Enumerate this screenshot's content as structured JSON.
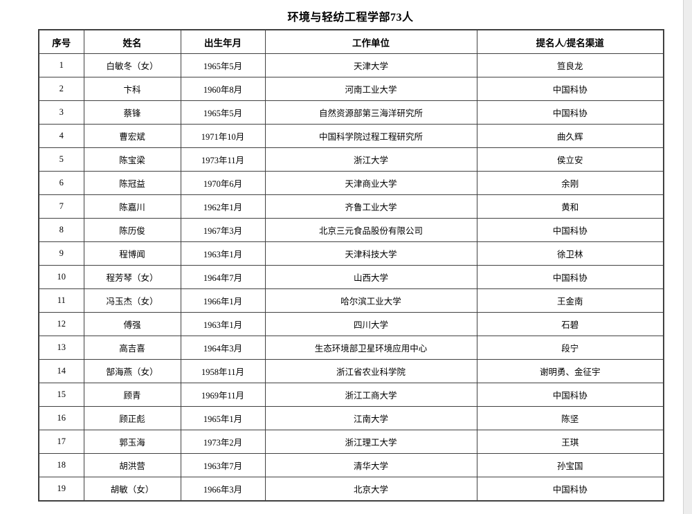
{
  "page": {
    "title": "环境与轻纺工程学部73人",
    "edge_strip_color": "#ededed"
  },
  "table": {
    "headers": [
      "序号",
      "姓名",
      "出生年月",
      "工作单位",
      "提名人/提名渠道"
    ],
    "rows": [
      [
        "1",
        "白敏冬（女）",
        "1965年5月",
        "天津大学",
        "笪良龙"
      ],
      [
        "2",
        "卞科",
        "1960年8月",
        "河南工业大学",
        "中国科协"
      ],
      [
        "3",
        "蔡锋",
        "1965年5月",
        "自然资源部第三海洋研究所",
        "中国科协"
      ],
      [
        "4",
        "曹宏斌",
        "1971年10月",
        "中国科学院过程工程研究所",
        "曲久辉"
      ],
      [
        "5",
        "陈宝梁",
        "1973年11月",
        "浙江大学",
        "侯立安"
      ],
      [
        "6",
        "陈冠益",
        "1970年6月",
        "天津商业大学",
        "余刚"
      ],
      [
        "7",
        "陈嘉川",
        "1962年1月",
        "齐鲁工业大学",
        "黄和"
      ],
      [
        "8",
        "陈历俊",
        "1967年3月",
        "北京三元食品股份有限公司",
        "中国科协"
      ],
      [
        "9",
        "程博闻",
        "1963年1月",
        "天津科技大学",
        "徐卫林"
      ],
      [
        "10",
        "程芳琴（女）",
        "1964年7月",
        "山西大学",
        "中国科协"
      ],
      [
        "11",
        "冯玉杰（女）",
        "1966年1月",
        "哈尔滨工业大学",
        "王金南"
      ],
      [
        "12",
        "傅强",
        "1963年1月",
        "四川大学",
        "石碧"
      ],
      [
        "13",
        "高吉喜",
        "1964年3月",
        "生态环境部卫星环境应用中心",
        "段宁"
      ],
      [
        "14",
        "郜海燕（女）",
        "1958年11月",
        "浙江省农业科学院",
        "谢明勇、金征宇"
      ],
      [
        "15",
        "顾青",
        "1969年11月",
        "浙江工商大学",
        "中国科协"
      ],
      [
        "16",
        "顾正彪",
        "1965年1月",
        "江南大学",
        "陈坚"
      ],
      [
        "17",
        "郭玉海",
        "1973年2月",
        "浙江理工大学",
        "王琪"
      ],
      [
        "18",
        "胡洪营",
        "1963年7月",
        "清华大学",
        "孙宝国"
      ],
      [
        "19",
        "胡敏（女）",
        "1966年3月",
        "北京大学",
        "中国科协"
      ]
    ]
  }
}
